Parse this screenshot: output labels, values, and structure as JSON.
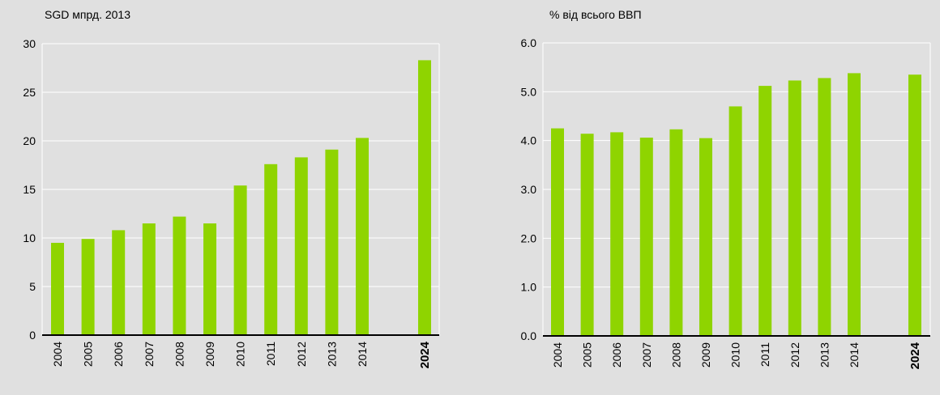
{
  "colors": {
    "background": "#e0e0e0",
    "bar": "#8fd400",
    "grid": "#ffffff",
    "axis": "#000000",
    "text": "#000000"
  },
  "chart_data": [
    {
      "type": "bar",
      "title": "SGD мпрд. 2013",
      "xlabel": "",
      "ylabel": "",
      "categories": [
        "2004",
        "2005",
        "2006",
        "2007",
        "2008",
        "2009",
        "2010",
        "2011",
        "2012",
        "2013",
        "2014",
        "2024"
      ],
      "values": [
        9.5,
        9.9,
        10.8,
        11.5,
        12.2,
        11.5,
        15.4,
        17.6,
        18.3,
        19.1,
        20.3,
        28.3
      ],
      "ylim": [
        0,
        30
      ],
      "yticks": [
        "0",
        "5",
        "10",
        "15",
        "20",
        "25",
        "30"
      ],
      "highlight_category": "2024",
      "grid": true,
      "legend": "none"
    },
    {
      "type": "bar",
      "title": "% від всього ВВП",
      "xlabel": "",
      "ylabel": "",
      "categories": [
        "2004",
        "2005",
        "2006",
        "2007",
        "2008",
        "2009",
        "2010",
        "2011",
        "2012",
        "2013",
        "2014",
        "2024"
      ],
      "values": [
        4.25,
        4.14,
        4.17,
        4.06,
        4.23,
        4.05,
        4.7,
        5.12,
        5.23,
        5.28,
        5.38,
        5.35
      ],
      "ylim": [
        0,
        6
      ],
      "yticks": [
        "0.0",
        "1.0",
        "2.0",
        "3.0",
        "4.0",
        "5.0",
        "6.0"
      ],
      "highlight_category": "2024",
      "grid": true,
      "legend": "none"
    }
  ]
}
